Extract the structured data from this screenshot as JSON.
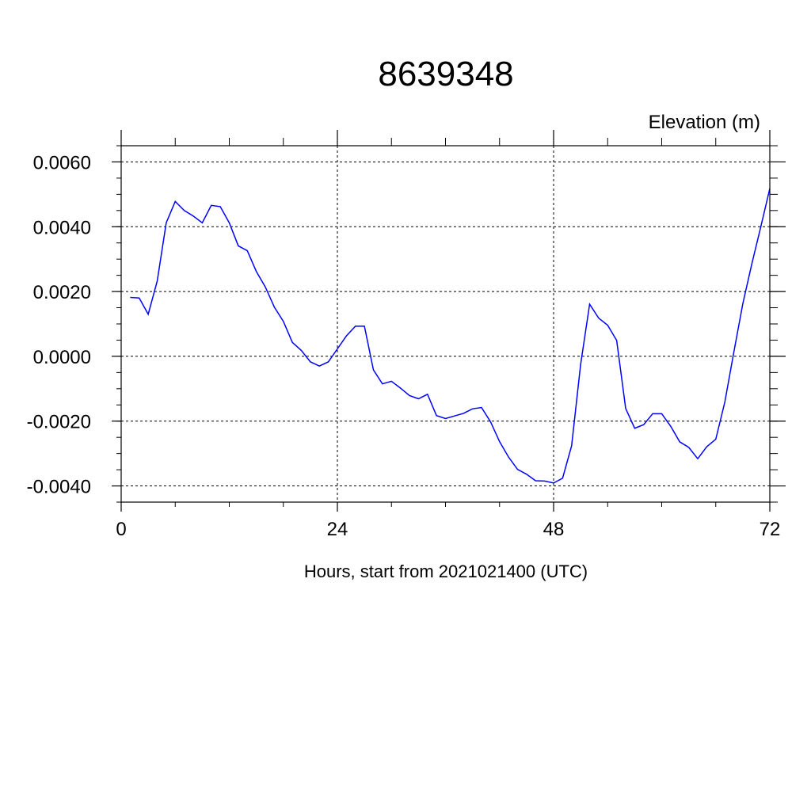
{
  "chart_data": {
    "type": "line",
    "title": "8639348",
    "ylabel": "Elevation (m)",
    "xlabel": "Hours, start from 2021021400 (UTC)",
    "xlim": [
      0,
      72
    ],
    "ylim": [
      -0.0045,
      0.0065
    ],
    "x_ticks": [
      0,
      24,
      48,
      72
    ],
    "x_tick_labels": [
      "0",
      "24",
      "48",
      "72"
    ],
    "y_ticks": [
      -0.004,
      -0.002,
      0.0,
      0.002,
      0.004,
      0.006
    ],
    "y_tick_labels": [
      "-0.0040",
      "-0.0020",
      "0.0000",
      "0.0020",
      "0.0040",
      "0.0060"
    ],
    "grid": true,
    "line_color": "#0000ff",
    "series": [
      {
        "x": [
          1,
          2,
          3,
          4,
          5,
          6,
          7,
          8,
          9,
          10,
          11,
          12,
          13,
          14,
          15,
          16,
          17,
          18,
          19,
          20,
          21,
          22,
          23,
          24,
          25,
          26,
          27,
          28,
          29,
          30,
          31,
          32,
          33,
          34,
          35,
          36,
          37,
          38,
          39,
          40,
          41,
          42,
          43,
          44,
          45,
          46,
          47,
          48,
          49,
          50,
          51,
          52,
          53,
          54,
          55,
          56,
          57,
          58,
          59,
          60,
          61,
          62,
          63,
          64,
          65,
          66,
          67,
          68,
          69,
          70,
          71,
          72
        ],
        "values": [
          0.00182,
          0.0018,
          0.0013,
          0.00232,
          0.00412,
          0.00478,
          0.0045,
          0.00433,
          0.00412,
          0.00466,
          0.00462,
          0.00412,
          0.00341,
          0.00326,
          0.00262,
          0.00214,
          0.00152,
          0.00108,
          0.00043,
          0.00018,
          -0.00017,
          -0.0003,
          -0.00017,
          0.00023,
          0.00063,
          0.00093,
          0.00093,
          -0.00042,
          -0.00085,
          -0.00077,
          -0.00098,
          -0.00121,
          -0.00131,
          -0.00117,
          -0.00183,
          -0.00192,
          -0.00184,
          -0.00176,
          -0.00162,
          -0.00158,
          -0.00202,
          -0.00263,
          -0.00311,
          -0.00349,
          -0.00364,
          -0.00384,
          -0.00385,
          -0.00391,
          -0.00376,
          -0.00276,
          -0.00025,
          0.00161,
          0.00118,
          0.00096,
          0.00049,
          -0.00161,
          -0.00222,
          -0.00211,
          -0.00177,
          -0.00177,
          -0.00216,
          -0.00264,
          -0.00281,
          -0.00316,
          -0.00279,
          -0.00256,
          -0.00142,
          0.00012,
          0.00162,
          0.00285,
          0.004,
          0.00518
        ]
      }
    ]
  }
}
